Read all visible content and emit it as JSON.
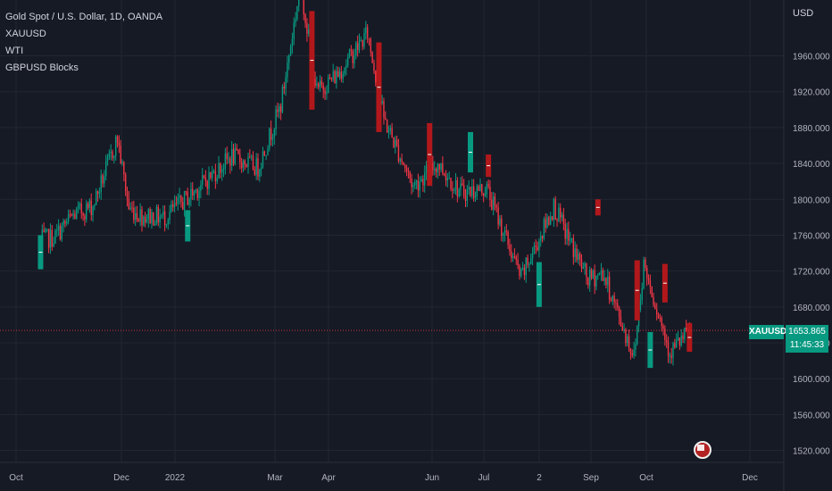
{
  "legend": {
    "title": "Gold Spot / U.S. Dollar, 1D, OANDA",
    "items": [
      "XAUUSD",
      "WTI",
      "GBPUSD Blocks"
    ]
  },
  "axis_currency": "USD",
  "price_tag": {
    "symbol": "XAUUSD",
    "price": "1653.865",
    "countdown": "11:45:33",
    "color": "#089981"
  },
  "colors": {
    "bg": "#161a25",
    "up": "#089981",
    "down": "#f23645",
    "block_up": "#089981",
    "block_down": "#b2181b",
    "grid": "#222631",
    "text": "#b2b5be"
  },
  "chart_data": {
    "type": "candlestick",
    "title": "Gold Spot / U.S. Dollar, 1D, OANDA",
    "symbol": "XAUUSD",
    "ylabel": "USD",
    "ylim": [
      1505,
      2005
    ],
    "yticks": [
      1520,
      1560,
      1600,
      1640,
      1680,
      1720,
      1760,
      1800,
      1840,
      1880,
      1920,
      1960
    ],
    "ytick_labels": [
      "1520.000",
      "1560.000",
      "1600.000",
      "1640.000",
      "1680.000",
      "1720.000",
      "1760.000",
      "1800.000",
      "1840.000",
      "1880.000",
      "1920.000",
      "1960.000"
    ],
    "xticks": [
      "Oct",
      "Dec",
      "2022",
      "Mar",
      "Apr",
      "Jun",
      "Jul",
      "2",
      "Sep",
      "Oct",
      "Dec"
    ],
    "last_price": 1653.865,
    "grid": true,
    "series": [
      {
        "name": "XAUUSD",
        "close_path": [
          [
            "2021-09-30",
            1755
          ],
          [
            "2021-10-08",
            1757
          ],
          [
            "2021-10-20",
            1782
          ],
          [
            "2021-11-01",
            1793
          ],
          [
            "2021-11-16",
            1868
          ],
          [
            "2021-11-23",
            1790
          ],
          [
            "2021-12-01",
            1782
          ],
          [
            "2021-12-15",
            1780
          ],
          [
            "2022-01-04",
            1812
          ],
          [
            "2022-01-25",
            1848
          ],
          [
            "2022-02-10",
            1835
          ],
          [
            "2022-02-24",
            1905
          ],
          [
            "2022-03-08",
            2040
          ],
          [
            "2022-03-18",
            1920
          ],
          [
            "2022-03-31",
            1940
          ],
          [
            "2022-04-18",
            1985
          ],
          [
            "2022-04-28",
            1890
          ],
          [
            "2022-05-16",
            1815
          ],
          [
            "2022-05-31",
            1840
          ],
          [
            "2022-06-14",
            1808
          ],
          [
            "2022-06-30",
            1812
          ],
          [
            "2022-07-21",
            1712
          ],
          [
            "2022-08-10",
            1792
          ],
          [
            "2022-08-18",
            1760
          ],
          [
            "2022-08-31",
            1710
          ],
          [
            "2022-09-09",
            1718
          ],
          [
            "2022-09-28",
            1625
          ],
          [
            "2022-10-04",
            1728
          ],
          [
            "2022-10-20",
            1630
          ],
          [
            "2022-11-02",
            1653.865
          ]
        ]
      },
      {
        "name": "GBPUSD Blocks",
        "blocks": [
          {
            "date": "2021-09-30",
            "direction": "up",
            "low": 1722,
            "high": 1760
          },
          {
            "date": "2021-12-29",
            "direction": "up",
            "low": 1753,
            "high": 1788
          },
          {
            "date": "2022-03-15",
            "direction": "down",
            "low": 1900,
            "high": 2010
          },
          {
            "date": "2022-04-25",
            "direction": "down",
            "low": 1875,
            "high": 1975
          },
          {
            "date": "2022-05-26",
            "direction": "down",
            "low": 1815,
            "high": 1885
          },
          {
            "date": "2022-06-20",
            "direction": "up",
            "low": 1830,
            "high": 1875
          },
          {
            "date": "2022-07-01",
            "direction": "down",
            "low": 1825,
            "high": 1850
          },
          {
            "date": "2022-08-01",
            "direction": "up",
            "low": 1680,
            "high": 1730
          },
          {
            "date": "2022-09-06",
            "direction": "down",
            "low": 1782,
            "high": 1800
          },
          {
            "date": "2022-09-30",
            "direction": "down",
            "low": 1665,
            "high": 1732
          },
          {
            "date": "2022-10-08",
            "direction": "up",
            "low": 1612,
            "high": 1652
          },
          {
            "date": "2022-10-17",
            "direction": "down",
            "low": 1685,
            "high": 1728
          },
          {
            "date": "2022-11-01",
            "direction": "down",
            "low": 1630,
            "high": 1662
          }
        ]
      }
    ]
  }
}
